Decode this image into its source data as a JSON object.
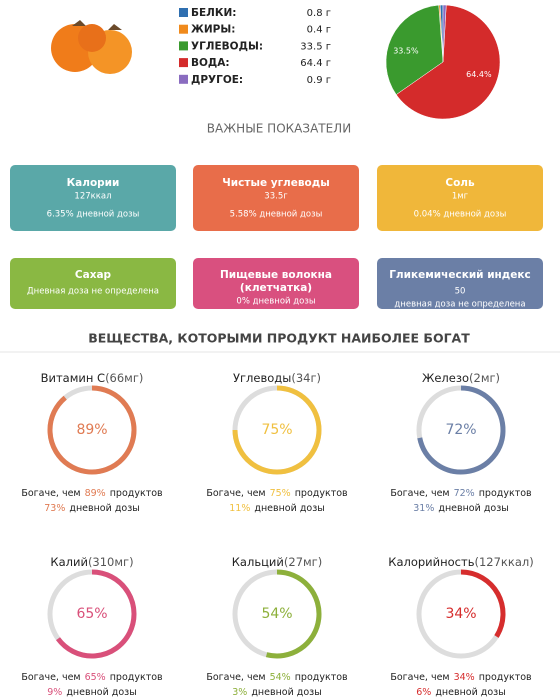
{
  "composition": {
    "rows": [
      {
        "name": "БЕЛКИ:",
        "value": 0.8,
        "value_label": "0.8 г",
        "color": "#2f6fb0",
        "pie_label": null
      },
      {
        "name": "ЖИРЫ:",
        "value": 0.4,
        "value_label": "0.4 г",
        "color": "#f08a1c",
        "pie_label": null
      },
      {
        "name": "УГЛЕВОДЫ:",
        "value": 33.5,
        "value_label": "33.5 г",
        "color": "#3a9a2e",
        "pie_label": "33.5%"
      },
      {
        "name": "ВОДА:",
        "value": 64.4,
        "value_label": "64.4 г",
        "color": "#d42b2b",
        "pie_label": "64.4%"
      },
      {
        "name": "ДРУГОЕ:",
        "value": 0.9,
        "value_label": "0.9 г",
        "color": "#8a6cc0",
        "pie_label": null
      }
    ]
  },
  "indicators": {
    "title": "ВАЖНЫЕ ПОКАЗАТЕЛИ",
    "cards": [
      {
        "title_lines": [
          "Калории"
        ],
        "lines": [
          "127ккал",
          "6.35% дневной дозы"
        ],
        "color": "#5aa8a8"
      },
      {
        "title_lines": [
          "Чистые углеводы"
        ],
        "lines": [
          "33.5г",
          "5.58% дневной дозы"
        ],
        "color": "#e86d4a"
      },
      {
        "title_lines": [
          "Соль"
        ],
        "lines": [
          "1мг",
          "0.04% дневной дозы"
        ],
        "color": "#f0b73a"
      },
      {
        "title_lines": [
          "Сахар"
        ],
        "lines": [
          "Дневная доза не определена"
        ],
        "color": "#8ab843"
      },
      {
        "title_lines": [
          "Пищевые волокна",
          "(клетчатка)"
        ],
        "lines": [
          "0% дневной дозы"
        ],
        "color": "#d9507f"
      },
      {
        "title_lines": [
          "Гликемический индекс"
        ],
        "lines": [
          "50",
          "дневная доза не определена"
        ],
        "color": "#6b7fa6"
      }
    ]
  },
  "rich": {
    "title": "ВЕЩЕСТВА, КОТОРЫМИ ПРОДУКТ НАИБОЛЕЕ БОГАТ",
    "richer_prefix": "Богаче, чем",
    "richer_suffix": "продуктов",
    "daily_suffix": "дневной дозы",
    "items": [
      {
        "name": "Витамин С",
        "amount": "(66мг)",
        "value": 89,
        "value_label": "89%",
        "daily_label": "73%",
        "color": "#e07b53"
      },
      {
        "name": "Углеводы",
        "amount": "(34г)",
        "value": 75,
        "value_label": "75%",
        "daily_label": "11%",
        "color": "#f0c040"
      },
      {
        "name": "Железо",
        "amount": "(2мг)",
        "value": 72,
        "value_label": "72%",
        "daily_label": "31%",
        "color": "#6b7fa6"
      },
      {
        "name": "Калий",
        "amount": "(310мг)",
        "value": 65,
        "value_label": "65%",
        "daily_label": "9%",
        "color": "#d9507a"
      },
      {
        "name": "Кальций",
        "amount": "(27мг)",
        "value": 54,
        "value_label": "54%",
        "daily_label": "3%",
        "color": "#8db03b"
      },
      {
        "name": "Калорийность",
        "amount": "(127ккал)",
        "value": 34,
        "value_label": "34%",
        "daily_label": "6%",
        "color": "#d62d2d"
      }
    ]
  }
}
